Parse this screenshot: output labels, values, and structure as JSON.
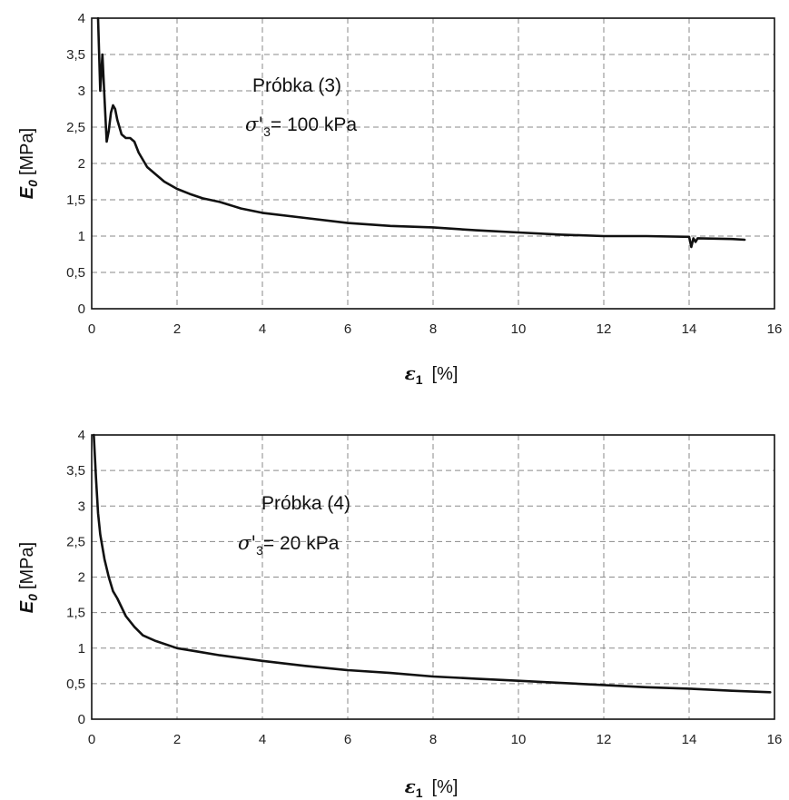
{
  "chart_data": [
    {
      "type": "line",
      "annotation_line1": "Próbka (3)",
      "annotation_sigma": "σ'",
      "annotation_sub": "3",
      "annotation_value": "= 100 kPa",
      "ylabel_symbol": "E",
      "ylabel_sub": "0",
      "ylabel_unit": "[MPa]",
      "xlabel_symbol": "ε",
      "xlabel_sub": "1",
      "xlabel_unit": "[%]",
      "xlim": [
        0,
        16
      ],
      "ylim": [
        0,
        4
      ],
      "x_ticks": [
        "0",
        "2",
        "4",
        "6",
        "8",
        "10",
        "12",
        "14",
        "16"
      ],
      "y_ticks": [
        "0",
        "0,5",
        "1",
        "1,5",
        "2",
        "2,5",
        "3",
        "3,5",
        "4"
      ],
      "grid": true,
      "series": [
        {
          "x": [
            0.15,
            0.2,
            0.25,
            0.3,
            0.35,
            0.4,
            0.45,
            0.5,
            0.55,
            0.6,
            0.7,
            0.8,
            0.9,
            1.0,
            1.1,
            1.2,
            1.3,
            1.4,
            1.5,
            1.7,
            2.0,
            2.3,
            2.6,
            3.0,
            3.5,
            4.0,
            5.0,
            6.0,
            7.0,
            8.0,
            9.0,
            10.0,
            11.0,
            12.0,
            13.0,
            14.0,
            14.05,
            14.1,
            14.15,
            14.2,
            15.0,
            15.3
          ],
          "y": [
            4.0,
            3.0,
            3.5,
            2.9,
            2.3,
            2.45,
            2.7,
            2.8,
            2.75,
            2.6,
            2.4,
            2.35,
            2.35,
            2.3,
            2.15,
            2.05,
            1.95,
            1.9,
            1.85,
            1.75,
            1.65,
            1.58,
            1.52,
            1.47,
            1.38,
            1.32,
            1.25,
            1.18,
            1.14,
            1.12,
            1.08,
            1.05,
            1.02,
            1.0,
            1.0,
            0.99,
            0.85,
            0.97,
            0.92,
            0.97,
            0.96,
            0.95
          ]
        }
      ]
    },
    {
      "type": "line",
      "annotation_line1": "Próbka (4)",
      "annotation_sigma": "σ'",
      "annotation_sub": "3",
      "annotation_value": "= 20 kPa",
      "ylabel_symbol": "E",
      "ylabel_sub": "0",
      "ylabel_unit": "[MPa]",
      "xlabel_symbol": "ε",
      "xlabel_sub": "1",
      "xlabel_unit": "[%]",
      "xlim": [
        0,
        16
      ],
      "ylim": [
        0,
        4
      ],
      "x_ticks": [
        "0",
        "2",
        "4",
        "6",
        "8",
        "10",
        "12",
        "14",
        "16"
      ],
      "y_ticks": [
        "0",
        "0,5",
        "1",
        "1,5",
        "2",
        "2,5",
        "3",
        "3,5",
        "4"
      ],
      "grid": true,
      "series": [
        {
          "x": [
            0.05,
            0.1,
            0.15,
            0.2,
            0.3,
            0.4,
            0.5,
            0.6,
            0.8,
            1.0,
            1.2,
            1.5,
            2.0,
            2.5,
            3.0,
            4.0,
            5.0,
            6.0,
            7.0,
            8.0,
            9.0,
            10.0,
            11.0,
            12.0,
            13.0,
            14.0,
            15.0,
            15.9
          ],
          "y": [
            4.0,
            3.4,
            2.9,
            2.6,
            2.25,
            2.0,
            1.8,
            1.7,
            1.45,
            1.3,
            1.18,
            1.1,
            1.0,
            0.95,
            0.9,
            0.82,
            0.75,
            0.69,
            0.65,
            0.6,
            0.57,
            0.54,
            0.51,
            0.48,
            0.45,
            0.43,
            0.4,
            0.38
          ]
        }
      ]
    }
  ]
}
